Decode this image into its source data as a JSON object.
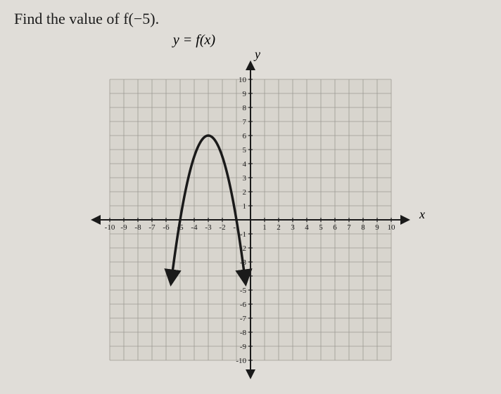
{
  "question": "Find the value of f(−5).",
  "equation": "y = f(x)",
  "axis_y_label": "y",
  "axis_x_label": "x",
  "chart": {
    "type": "line",
    "xlim": [
      -10,
      10
    ],
    "ylim": [
      -10,
      10
    ],
    "xtick_labels_neg": [
      "-10",
      "-9",
      "-8",
      "-7",
      "-6",
      "-5",
      "-4",
      "-3",
      "-2",
      "-1"
    ],
    "xtick_labels_pos": [
      "1",
      "2",
      "3",
      "4",
      "5",
      "6",
      "7",
      "8",
      "9",
      "10"
    ],
    "ytick_labels_pos": [
      "1",
      "2",
      "3",
      "4",
      "5",
      "6",
      "7",
      "8",
      "9",
      "10"
    ],
    "ytick_labels_neg": [
      "-1",
      "-2",
      "-3",
      "-4",
      "-5",
      "-6",
      "-7",
      "-8",
      "-9",
      "-10"
    ],
    "grid_color": "#9e9a94",
    "background_color": "#d8d5ce",
    "axis_color": "#1a1a1a",
    "curve_color": "#1a1a1a",
    "curve_width": 3.5,
    "tick_fontsize": 11,
    "parabola": {
      "vertex_x": -3,
      "vertex_y": 6,
      "a": -1.5,
      "x_start": -5.6,
      "x_end": -0.4
    }
  }
}
